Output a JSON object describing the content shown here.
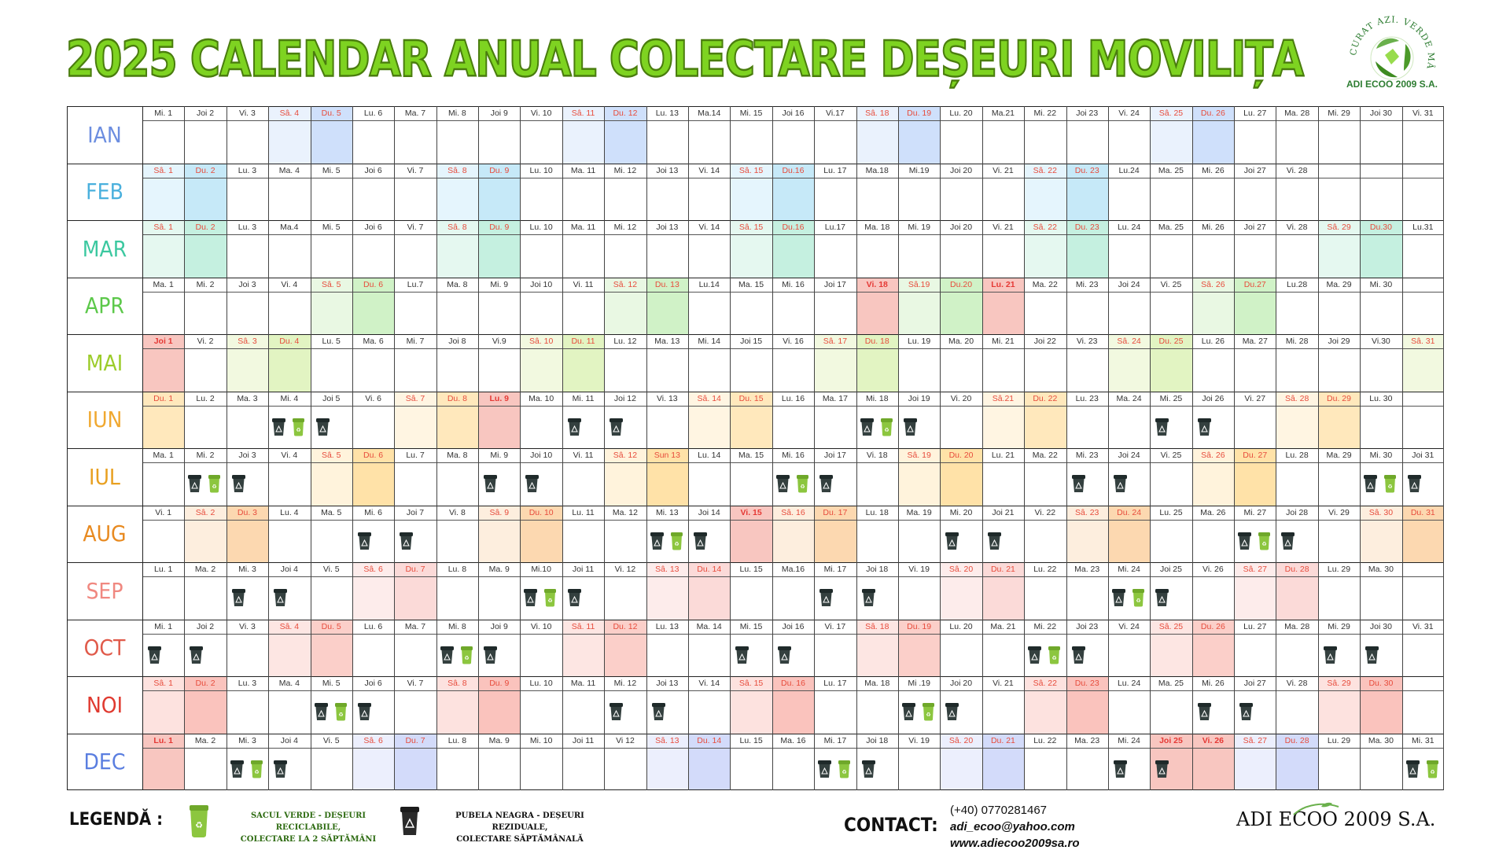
{
  "title": "2025 CALENDAR ANUAL COLECTARE DEȘEURI MOVILIȚA",
  "logo": {
    "arc_text": "CURAT AZI. VERDE MÂINE.",
    "name": "ADI ECOO 2009 S.A."
  },
  "colors": {
    "title_fill": "#7ed321",
    "title_stroke": "#4a7d0e",
    "holiday": "#f8c6c0",
    "weekend_text": "#e74c3c"
  },
  "months": [
    {
      "label": "IAN",
      "color": "#6c8ee0",
      "sat": "#eaf2fd",
      "sun": "#cfe0fb",
      "days": [
        "Mi. 1",
        "Joi 2",
        "Vi. 3",
        "Sâ. 4",
        "Du. 5",
        "Lu. 6",
        "Ma. 7",
        "Mi. 8",
        "Joi 9",
        "Vi. 10",
        "Sâ. 11",
        "Du. 12",
        "Lu. 13",
        "Ma.14",
        "Mi. 15",
        "Joi 16",
        "Vi.17",
        "Sâ. 18",
        "Du. 19",
        "Lu. 20",
        "Ma.21",
        "Mi. 22",
        "Joi 23",
        "Vi. 24",
        "Sâ. 25",
        "Du. 26",
        "Lu. 27",
        "Ma. 28",
        "Mi. 29",
        "Joi 30",
        "Vi. 31"
      ],
      "start": 3,
      "hol": [],
      "black": [],
      "green": []
    },
    {
      "label": "FEB",
      "color": "#4ab0dd",
      "sat": "#e5f5fd",
      "sun": "#c6e9f8",
      "days": [
        "Sâ. 1",
        "Du. 2",
        "Lu. 3",
        "Ma. 4",
        "Mi. 5",
        "Joi 6",
        "Vi. 7",
        "Sâ. 8",
        "Du. 9",
        "Lu. 10",
        "Ma. 11",
        "Mi. 12",
        "Joi 13",
        "Vi. 14",
        "Sâ. 15",
        "Du.16",
        "Lu. 17",
        "Ma.18",
        "Mi.19",
        "Joi 20",
        "Vi. 21",
        "Sâ. 22",
        "Du. 23",
        "Lu.24",
        "Ma. 25",
        "Mi. 26",
        "Joi 27",
        "Vi. 28"
      ],
      "start": 6,
      "hol": [],
      "black": [],
      "green": []
    },
    {
      "label": "MAR",
      "color": "#3cc8a0",
      "sat": "#e5f8f0",
      "sun": "#c5f0e0",
      "days": [
        "Sâ. 1",
        "Du. 2",
        "Lu. 3",
        "Ma.4",
        "Mi. 5",
        "Joi 6",
        "Vi. 7",
        "Sâ. 8",
        "Du. 9",
        "Lu. 10",
        "Ma. 11",
        "Mi. 12",
        "Joi 13",
        "Vi. 14",
        "Sâ. 15",
        "Du.16",
        "Lu.17",
        "Ma. 18",
        "Mi. 19",
        "Joi 20",
        "Vi. 21",
        "Sâ. 22",
        "Du. 23",
        "Lu. 24",
        "Ma. 25",
        "Mi. 26",
        "Joi 27",
        "Vi. 28",
        "Sâ. 29",
        "Du.30",
        "Lu.31"
      ],
      "start": 6,
      "hol": [],
      "black": [],
      "green": []
    },
    {
      "label": "APR",
      "color": "#5cc84a",
      "sat": "#e9f8e3",
      "sun": "#d0f2c7",
      "days": [
        "Ma. 1",
        "Mi. 2",
        "Joi 3",
        "Vi. 4",
        "Sâ. 5",
        "Du. 6",
        "Lu.7",
        "Ma. 8",
        "Mi. 9",
        "Joi 10",
        "Vi. 11",
        "Sâ. 12",
        "Du. 13",
        "Lu.14",
        "Ma. 15",
        "Mi. 16",
        "Joi 17",
        "Vi. 18",
        "Sâ.19",
        "Du.20",
        "Lu. 21",
        "Ma. 22",
        "Mi. 23",
        "Joi 24",
        "Vi. 25",
        "Sâ. 26",
        "Du.27",
        "Lu.28",
        "Ma. 29",
        "Mi. 30"
      ],
      "start": 2,
      "hol": [
        18,
        21
      ],
      "black": [],
      "green": []
    },
    {
      "label": "MAI",
      "color": "#9ccc2a",
      "sat": "#f2f9e0",
      "sun": "#e2f4c2",
      "days": [
        "Joi 1",
        "Vi. 2",
        "Sâ. 3",
        "Du. 4",
        "Lu. 5",
        "Ma. 6",
        "Mi. 7",
        "Joi 8",
        "Vi.9",
        "Sâ. 10",
        "Du. 11",
        "Lu. 12",
        "Ma. 13",
        "Mi. 14",
        "Joi 15",
        "Vi. 16",
        "Sâ. 17",
        "Du. 18",
        "Lu. 19",
        "Ma. 20",
        "Mi. 21",
        "Joi 22",
        "Vi. 23",
        "Sâ. 24",
        "Du. 25",
        "Lu. 26",
        "Ma. 27",
        "Mi. 28",
        "Joi 29",
        "Vi.30",
        "Sâ. 31"
      ],
      "start": 4,
      "hol": [
        1
      ],
      "black": [],
      "green": []
    },
    {
      "label": "IUN",
      "color": "#f0a830",
      "sat": "#fff5e2",
      "sun": "#ffe8bc",
      "days": [
        "Du. 1",
        "Lu. 2",
        "Ma. 3",
        "Mi. 4",
        "Joi 5",
        "Vi. 6",
        "Sâ. 7",
        "Du. 8",
        "Lu. 9",
        "Ma. 10",
        "Mi. 11",
        "Joi 12",
        "Vi. 13",
        "Sâ. 14",
        "Du. 15",
        "Lu. 16",
        "Ma. 17",
        "Mi. 18",
        "Joi 19",
        "Vi. 20",
        "Sâ.21",
        "Du. 22",
        "Lu. 23",
        "Ma. 24",
        "Mi. 25",
        "Joi 26",
        "Vi. 27",
        "Sâ. 28",
        "Du. 29",
        "Lu. 30"
      ],
      "start": 0,
      "hol": [
        9
      ],
      "black": [
        4,
        5,
        11,
        12,
        18,
        19,
        25,
        26
      ],
      "green": [
        4,
        18
      ]
    },
    {
      "label": "IUL",
      "color": "#e8a020",
      "sat": "#fff3dc",
      "sun": "#ffe2a8",
      "days": [
        "Ma. 1",
        "Mi. 2",
        "Joi 3",
        "Vi. 4",
        "Sâ. 5",
        "Du. 6",
        "Lu. 7",
        "Ma. 8",
        "Mi. 9",
        "Joi 10",
        "Vi. 11",
        "Sâ. 12",
        "Sun 13",
        "Lu. 14",
        "Ma. 15",
        "Mi. 16",
        "Joi 17",
        "Vi. 18",
        "Sâ. 19",
        "Du. 20",
        "Lu. 21",
        "Ma. 22",
        "Mi. 23",
        "Joi 24",
        "Vi. 25",
        "Sâ. 26",
        "Du. 27",
        "Lu. 28",
        "Ma. 29",
        "Mi. 30",
        "Joi 31"
      ],
      "start": 2,
      "hol": [],
      "black": [
        2,
        3,
        9,
        10,
        16,
        17,
        23,
        24,
        30,
        31
      ],
      "green": [
        2,
        16,
        30
      ]
    },
    {
      "label": "AUG",
      "color": "#e88a20",
      "sat": "#fdeede",
      "sun": "#fcd8b0",
      "days": [
        "Vi. 1",
        "Sâ. 2",
        "Du. 3",
        "Lu. 4",
        "Ma. 5",
        "Mi. 6",
        "Joi 7",
        "Vi. 8",
        "Sâ. 9",
        "Du. 10",
        "Lu. 11",
        "Ma. 12",
        "Mi. 13",
        "Joi 14",
        "Vi. 15",
        "Sâ. 16",
        "Du. 17",
        "Lu. 18",
        "Ma. 19",
        "Mi. 20",
        "Joi 21",
        "Vi. 22",
        "Sâ. 23",
        "Du. 24",
        "Lu. 25",
        "Ma. 26",
        "Mi. 27",
        "Joi 28",
        "Vi. 29",
        "Sâ. 30",
        "Du. 31"
      ],
      "start": 5,
      "hol": [
        15
      ],
      "black": [
        6,
        7,
        13,
        14,
        20,
        21,
        27,
        28
      ],
      "green": [
        13,
        27
      ]
    },
    {
      "label": "SEP",
      "color": "#f08880",
      "sat": "#fdeceb",
      "sun": "#fbdad8",
      "days": [
        "Lu. 1",
        "Ma. 2",
        "Mi. 3",
        "Joi 4",
        "Vi. 5",
        "Sâ. 6",
        "Du. 7",
        "Lu. 8",
        "Ma. 9",
        "Mi.10",
        "Joi 11",
        "Vi. 12",
        "Sâ. 13",
        "Du. 14",
        "Lu. 15",
        "Ma.16",
        "Mi. 17",
        "Joi 18",
        "Vi. 19",
        "Sâ. 20",
        "Du. 21",
        "Lu. 22",
        "Ma. 23",
        "Mi. 24",
        "Joi 25",
        "Vi. 26",
        "Sâ. 27",
        "Du. 28",
        "Lu. 29",
        "Ma. 30"
      ],
      "start": 1,
      "hol": [],
      "black": [
        3,
        4,
        10,
        11,
        17,
        18,
        24,
        25
      ],
      "green": [
        10,
        24
      ]
    },
    {
      "label": "OCT",
      "color": "#e05a4a",
      "sat": "#fde6e3",
      "sun": "#fbcfc9",
      "days": [
        "Mi. 1",
        "Joi 2",
        "Vi. 3",
        "Sâ. 4",
        "Du. 5",
        "Lu. 6",
        "Ma. 7",
        "Mi. 8",
        "Joi 9",
        "Vi. 10",
        "Sâ. 11",
        "Du. 12",
        "Lu. 13",
        "Ma. 14",
        "Mi. 15",
        "Joi 16",
        "Vi. 17",
        "Sâ. 18",
        "Du. 19",
        "Lu. 20",
        "Ma. 21",
        "Mi. 22",
        "Joi 23",
        "Vi. 24",
        "Sâ. 25",
        "Du. 26",
        "Lu. 27",
        "Ma. 28",
        "Mi. 29",
        "Joi 30",
        "Vi. 31"
      ],
      "start": 3,
      "hol": [],
      "black": [
        1,
        2,
        8,
        9,
        15,
        16,
        22,
        23,
        29,
        30
      ],
      "green": [
        8,
        22
      ]
    },
    {
      "label": "NOI",
      "color": "#e03a30",
      "sat": "#fde2df",
      "sun": "#fac3bd",
      "days": [
        "Sâ. 1",
        "Du. 2",
        "Lu. 3",
        "Ma. 4",
        "Mi. 5",
        "Joi 6",
        "Vi. 7",
        "Sâ. 8",
        "Du. 9",
        "Lu. 10",
        "Ma. 11",
        "Mi. 12",
        "Joi 13",
        "Vi. 14",
        "Sâ. 15",
        "Du. 16",
        "Lu. 17",
        "Ma. 18",
        "Mi .19",
        "Joi 20",
        "Vi. 21",
        "Sâ. 22",
        "Du. 23",
        "Lu. 24",
        "Ma. 25",
        "Mi. 26",
        "Joi 27",
        "Vi. 28",
        "Sâ. 29",
        "Du. 30"
      ],
      "start": 6,
      "hol": [],
      "black": [
        5,
        6,
        12,
        13,
        19,
        20,
        26,
        27
      ],
      "green": [
        5,
        19
      ]
    },
    {
      "label": "DEC",
      "color": "#5a7ee0",
      "sat": "#eceffd",
      "sun": "#d3dbfa",
      "days": [
        "Lu. 1",
        "Ma. 2",
        "Mi. 3",
        "Joi 4",
        "Vi. 5",
        "Sâ. 6",
        "Du. 7",
        "Lu. 8",
        "Ma. 9",
        "Mi. 10",
        "Joi 11",
        "Vi 12",
        "Sâ. 13",
        "Du. 14",
        "Lu. 15",
        "Ma. 16",
        "Mi. 17",
        "Joi 18",
        "Vi. 19",
        "Sâ. 20",
        "Du. 21",
        "Lu. 22",
        "Ma. 23",
        "Mi. 24",
        "Joi 25",
        "Vi. 26",
        "Sâ. 27",
        "Du. 28",
        "Lu. 29",
        "Ma. 30",
        "Mi. 31"
      ],
      "start": 1,
      "hol": [
        1,
        25,
        26
      ],
      "black": [
        3,
        4,
        17,
        18,
        24,
        25,
        31
      ],
      "green": [
        3,
        17,
        31
      ]
    }
  ],
  "legend": {
    "title": "LEGENDĂ :",
    "green_line1": "SACUL VERDE - DEȘEURI RECICLABILE,",
    "green_line2": "COLECTARE LA 2 SĂPTĂMÂNI",
    "black_line1": "PUBELA NEAGRA - DEȘEURI REZIDUALE,",
    "black_line2": "COLECTARE SĂPTĂMÂNALĂ"
  },
  "contact": {
    "title": "CONTACT:",
    "phone": "(+40) 0770281467",
    "email": "adi_ecoo@yahoo.com",
    "web": "www.adiecoo2009sa.ro"
  },
  "brand": "ADI ECOO 2009 S.A."
}
